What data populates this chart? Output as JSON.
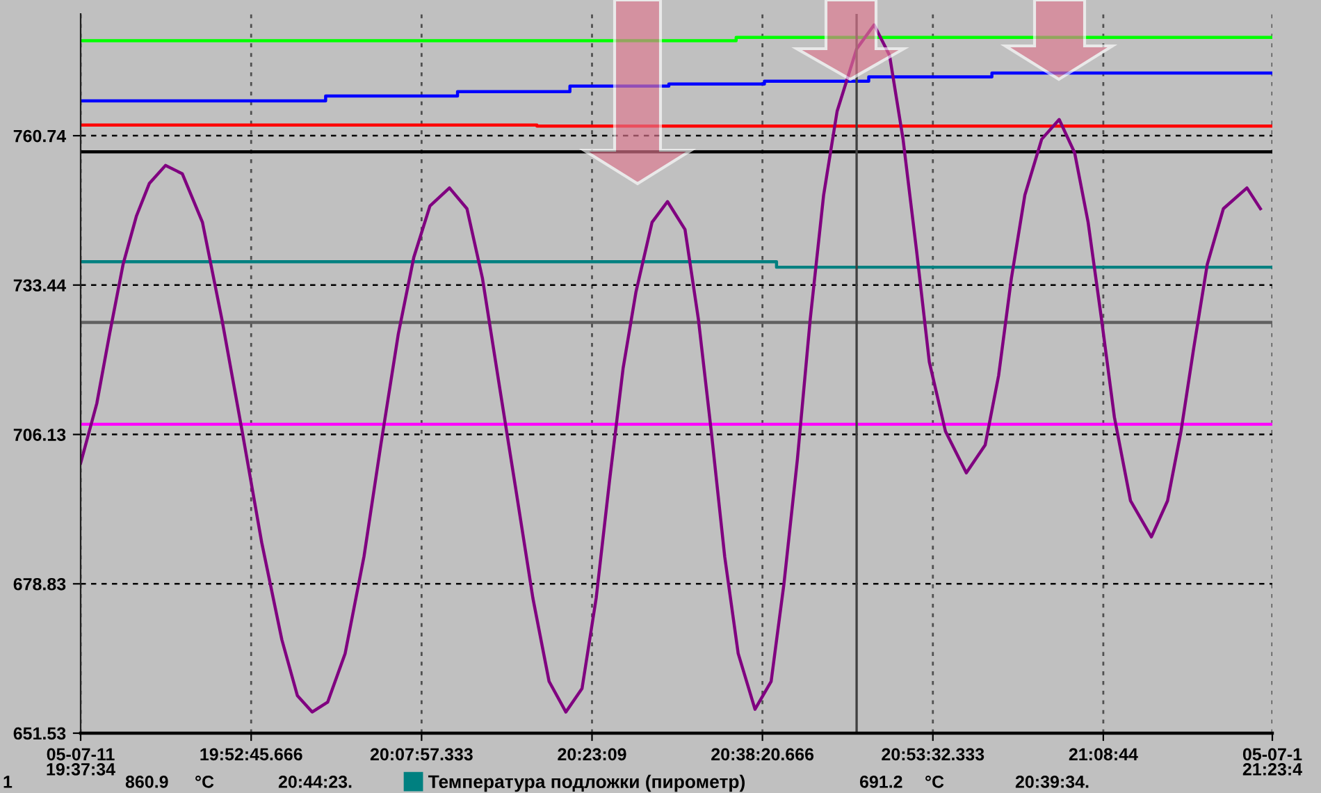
{
  "chart_data": {
    "type": "line",
    "xlim": [
      19.626,
      21.3967
    ],
    "ylim": [
      651.53,
      783.0
    ],
    "xticks": [
      {
        "value": 19.626,
        "label": "05-07-11\n19:37:34"
      },
      {
        "value": 19.879352,
        "label": "19:52:45.666"
      },
      {
        "value": 20.132593,
        "label": "20:07:57.333"
      },
      {
        "value": 20.385833,
        "label": "20:23:09"
      },
      {
        "value": 20.639074,
        "label": "20:38:20.666"
      },
      {
        "value": 20.892315,
        "label": "20:53:32.333"
      },
      {
        "value": 21.145556,
        "label": "21:08:44"
      },
      {
        "value": 21.3967,
        "label": "05-07-1\n21:23:4"
      }
    ],
    "yticks": [
      651.53,
      678.83,
      706.13,
      733.44,
      760.74
    ],
    "grid": true,
    "legend": "bottom",
    "line_style": "solid",
    "ref_lines": [
      {
        "axis": "x",
        "value": 20.779,
        "label": null,
        "color": "#404040"
      }
    ],
    "annotations": [
      "1",
      "860.9",
      "°C",
      "20:44:23.",
      "691.2",
      "°C",
      "20:39:34."
    ],
    "series": [
      {
        "type": "step",
        "color": "#00ff00",
        "x": [
          19.626,
          20.6,
          21.3967
        ],
        "values": [
          778.1,
          778.7,
          778.7
        ]
      },
      {
        "type": "step",
        "color": "#0000ff",
        "x": [
          19.626,
          19.99,
          20.186,
          20.353,
          20.5,
          20.642,
          20.797,
          20.98,
          21.3967
        ],
        "values": [
          767.1,
          768.0,
          768.8,
          769.8,
          770.2,
          770.7,
          771.5,
          772.2,
          772.2
        ]
      },
      {
        "type": "step",
        "color": "#ff0000",
        "x": [
          19.626,
          20.304,
          21.3967
        ],
        "values": [
          762.7,
          762.5,
          762.5
        ]
      },
      {
        "type": "step",
        "color": "#000000",
        "x": [
          19.626,
          21.3967
        ],
        "values": [
          757.8,
          757.8
        ]
      },
      {
        "type": "step",
        "color": "#008080",
        "name": "Температура подложки (пирометр)",
        "x": [
          19.626,
          20.66,
          21.3967
        ],
        "values": [
          737.7,
          736.7,
          736.7
        ]
      },
      {
        "type": "step",
        "color": "#606060",
        "x": [
          19.626,
          21.3967
        ],
        "values": [
          726.6,
          726.6
        ]
      },
      {
        "type": "step",
        "color": "#ff00ff",
        "x": [
          19.626,
          21.3967
        ],
        "values": [
          708.0,
          708.0
        ]
      },
      {
        "color": "#800080",
        "x": [
          19.626,
          19.65,
          19.669,
          19.689,
          19.709,
          19.728,
          19.752,
          19.777,
          19.807,
          19.836,
          19.866,
          19.895,
          19.925,
          19.948,
          19.97,
          19.993,
          20.019,
          20.047,
          20.072,
          20.098,
          20.121,
          20.145,
          20.174,
          20.2,
          20.223,
          20.249,
          20.272,
          20.298,
          20.322,
          20.347,
          20.371,
          20.392,
          20.412,
          20.432,
          20.451,
          20.475,
          20.498,
          20.524,
          20.544,
          20.563,
          20.583,
          20.603,
          20.628,
          20.652,
          20.671,
          20.691,
          20.71,
          20.73,
          20.75,
          20.779,
          20.805,
          20.828,
          20.848,
          20.868,
          20.887,
          20.911,
          20.942,
          20.97,
          20.99,
          21.009,
          21.029,
          21.054,
          21.08,
          21.103,
          21.123,
          21.143,
          21.162,
          21.186,
          21.217,
          21.241,
          21.261,
          21.28,
          21.3,
          21.324,
          21.359,
          21.379
        ],
        "values": [
          700.9,
          711.8,
          724.5,
          737.2,
          746.1,
          752.0,
          755.3,
          753.8,
          744.9,
          727.1,
          706.7,
          686.4,
          668.6,
          658.4,
          655.4,
          657.2,
          666.1,
          683.8,
          704.2,
          724.5,
          738.5,
          747.9,
          751.2,
          747.4,
          734.7,
          714.4,
          696.6,
          676.2,
          661.0,
          655.4,
          659.7,
          676.2,
          697.8,
          718.2,
          732.1,
          744.9,
          748.7,
          743.6,
          727.1,
          706.7,
          683.8,
          666.1,
          655.9,
          661.0,
          678.8,
          701.6,
          727.1,
          749.9,
          765.2,
          776.6,
          781.0,
          775.4,
          760.1,
          739.8,
          719.4,
          706.7,
          699.1,
          704.2,
          716.9,
          734.7,
          749.9,
          760.1,
          763.7,
          757.6,
          744.9,
          727.1,
          709.3,
          694.0,
          687.4,
          694.0,
          706.7,
          722.0,
          737.2,
          747.4,
          751.2,
          747.4
        ]
      }
    ]
  }
}
